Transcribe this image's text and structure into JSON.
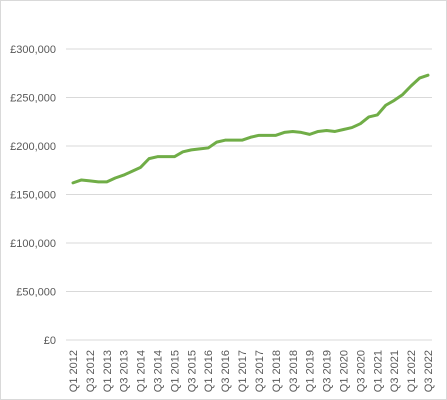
{
  "chart_data": {
    "type": "line",
    "categories": [
      "Q1 2012",
      "Q2 2012",
      "Q3 2012",
      "Q4 2012",
      "Q1 2013",
      "Q2 2013",
      "Q3 2013",
      "Q4 2013",
      "Q1 2014",
      "Q2 2014",
      "Q3 2014",
      "Q4 2014",
      "Q1 2015",
      "Q2 2015",
      "Q3 2015",
      "Q4 2015",
      "Q1 2016",
      "Q2 2016",
      "Q3 2016",
      "Q4 2016",
      "Q1 2017",
      "Q2 2017",
      "Q3 2017",
      "Q4 2017",
      "Q1 2018",
      "Q2 2018",
      "Q3 2018",
      "Q4 2018",
      "Q1 2019",
      "Q2 2019",
      "Q3 2019",
      "Q4 2019",
      "Q1 2020",
      "Q2 2020",
      "Q3 2020",
      "Q4 2020",
      "Q1 2021",
      "Q2 2021",
      "Q3 2021",
      "Q4 2021",
      "Q1 2022",
      "Q2 2022",
      "Q3 2022"
    ],
    "tick_labels_shown": [
      "Q1 2012",
      "Q3 2012",
      "Q1 2013",
      "Q3 2013",
      "Q1 2014",
      "Q3 2014",
      "Q1 2015",
      "Q3 2015",
      "Q1 2016",
      "Q3 2016",
      "Q1 2017",
      "Q3 2017",
      "Q1 2018",
      "Q3 2018",
      "Q1 2019",
      "Q3 2019",
      "Q1 2020",
      "Q3 2020",
      "Q1 2021",
      "Q3 2021",
      "Q1 2022",
      "Q3 2022"
    ],
    "series": [
      {
        "values": [
          162000,
          165000,
          164000,
          163000,
          163000,
          167000,
          170000,
          174000,
          178000,
          187000,
          189000,
          189000,
          189000,
          194000,
          196000,
          197000,
          198000,
          204000,
          206000,
          206000,
          206000,
          209000,
          211000,
          211000,
          211000,
          214000,
          215000,
          214000,
          212000,
          215000,
          216000,
          215000,
          217000,
          219000,
          223000,
          230000,
          232000,
          242000,
          247000,
          253000,
          262000,
          270000,
          273000
        ],
        "color": "#70ad47"
      }
    ],
    "y_ticks": [
      0,
      50000,
      100000,
      150000,
      200000,
      250000,
      300000
    ],
    "y_tick_labels": [
      "£0",
      "£50,000",
      "£100,000",
      "£150,000",
      "£200,000",
      "£250,000",
      "£300,000"
    ],
    "ylim": [
      0,
      300000
    ],
    "grid": true,
    "title": "",
    "xlabel": "",
    "ylabel": ""
  }
}
